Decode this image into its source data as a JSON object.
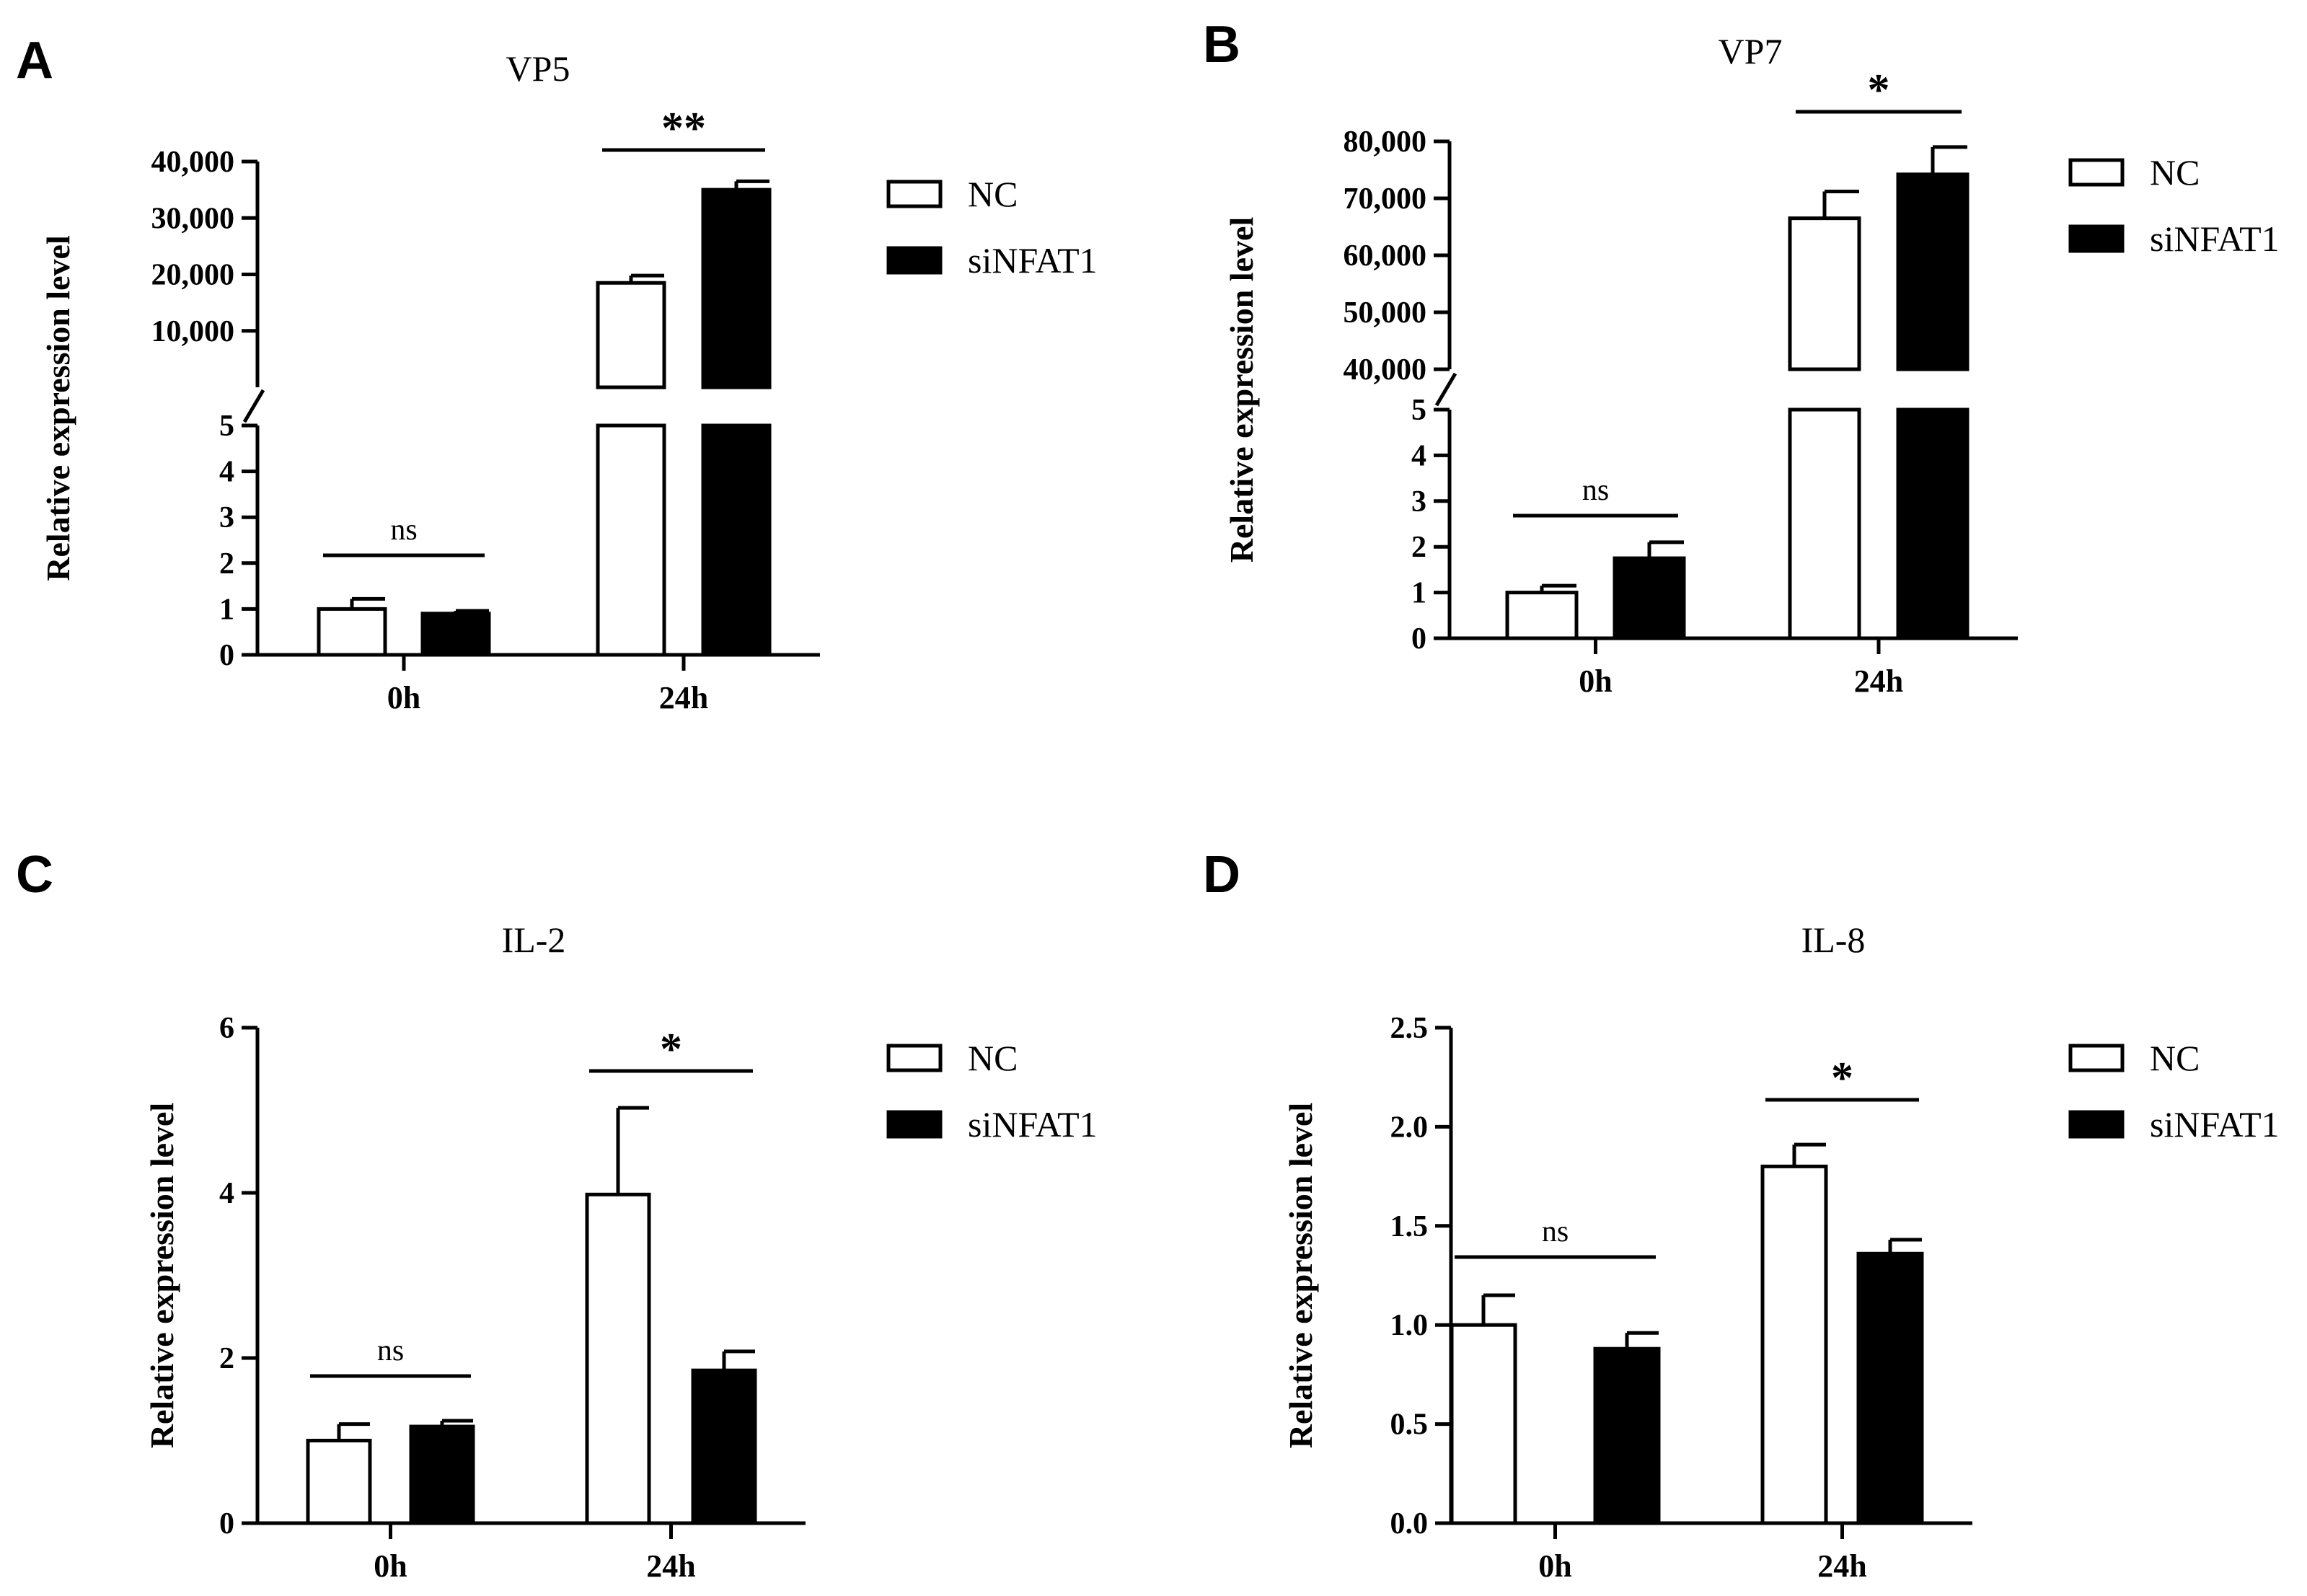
{
  "figure": {
    "series_names": [
      "NC",
      "siNFAT1"
    ],
    "colors": {
      "nc_fill": "#ffffff",
      "sinfat1_fill": "#000000",
      "stroke": "#000000"
    }
  },
  "chart_data": [
    {
      "panel": "A",
      "type": "bar",
      "title": "VP5",
      "ylabel": "Relative  expression level",
      "categories": [
        "0h",
        "24h"
      ],
      "series": [
        {
          "name": "NC",
          "values": [
            1.0,
            18500
          ],
          "errors": [
            0.22,
            1300
          ]
        },
        {
          "name": "siNFAT1",
          "values": [
            0.9,
            35000
          ],
          "errors": [
            0.06,
            1500
          ]
        }
      ],
      "axis_break": true,
      "lower_ylim": [
        0,
        5
      ],
      "lower_ticks": [
        "0",
        "1",
        "2",
        "3",
        "4",
        "5"
      ],
      "upper_ylim": [
        0,
        40000
      ],
      "upper_ticks": [
        "10,000",
        "20,000",
        "30,000",
        "40,000"
      ],
      "significance": [
        "ns",
        "**"
      ],
      "legend": "right"
    },
    {
      "panel": "B",
      "type": "bar",
      "title": "VP7",
      "ylabel": "Relative  expression level",
      "categories": [
        "0h",
        "24h"
      ],
      "series": [
        {
          "name": "NC",
          "values": [
            1.0,
            66500
          ],
          "errors": [
            0.15,
            4700
          ]
        },
        {
          "name": "siNFAT1",
          "values": [
            1.75,
            74200
          ],
          "errors": [
            0.35,
            4800
          ]
        }
      ],
      "axis_break": true,
      "lower_ylim": [
        0,
        5
      ],
      "lower_ticks": [
        "0",
        "1",
        "2",
        "3",
        "4",
        "5"
      ],
      "upper_ylim": [
        40000,
        80000
      ],
      "upper_ticks": [
        "40,000",
        "50,000",
        "60,000",
        "70,000",
        "80,000"
      ],
      "significance": [
        "ns",
        "*"
      ],
      "legend": "right"
    },
    {
      "panel": "C",
      "type": "bar",
      "title": "IL-2",
      "ylabel": "Relative  expression level",
      "categories": [
        "0h",
        "24h"
      ],
      "series": [
        {
          "name": "NC",
          "values": [
            1.0,
            3.98
          ],
          "errors": [
            0.2,
            1.05
          ]
        },
        {
          "name": "siNFAT1",
          "values": [
            1.17,
            1.85
          ],
          "errors": [
            0.07,
            0.23
          ]
        }
      ],
      "axis_break": false,
      "ylim": [
        0,
        6
      ],
      "ticks": [
        "0",
        "2",
        "4",
        "6"
      ],
      "significance": [
        "ns",
        "*"
      ],
      "legend": "right"
    },
    {
      "panel": "D",
      "type": "bar",
      "title": "IL-8",
      "ylabel": "Relative  expression level",
      "categories": [
        "0h",
        "24h"
      ],
      "series": [
        {
          "name": "NC",
          "values": [
            1.0,
            1.8
          ],
          "errors": [
            0.15,
            0.11
          ]
        },
        {
          "name": "siNFAT1",
          "values": [
            0.88,
            1.36
          ],
          "errors": [
            0.08,
            0.07
          ]
        }
      ],
      "axis_break": false,
      "ylim": [
        0,
        2.5
      ],
      "ticks": [
        "0.0",
        "0.5",
        "1.0",
        "1.5",
        "2.0",
        "2.5"
      ],
      "significance": [
        "ns",
        "*"
      ],
      "legend": "right"
    }
  ]
}
